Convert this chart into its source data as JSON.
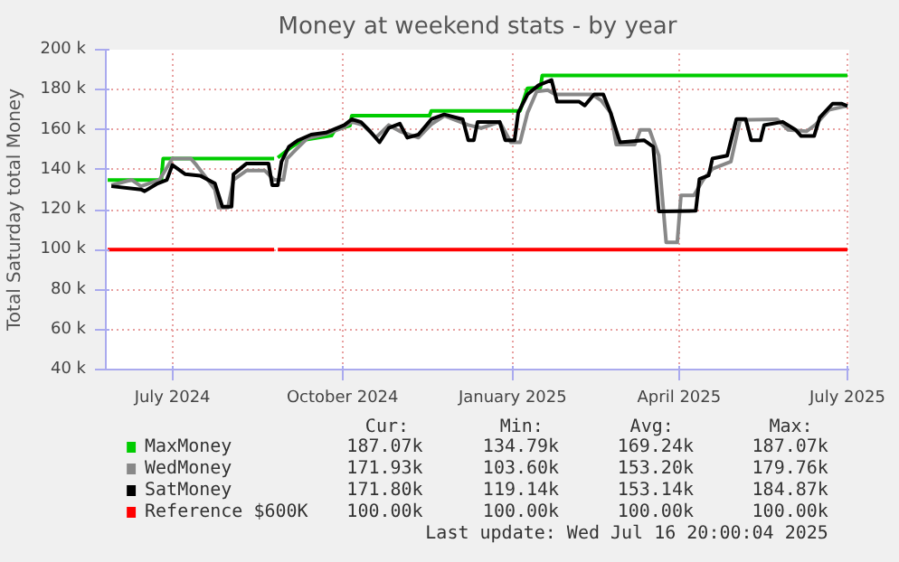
{
  "chart_data": {
    "type": "line",
    "title": "Money at weekend stats - by year",
    "ylabel": "Total Saturday total Money",
    "xlim": [
      "2024-06-10",
      "2025-07-17"
    ],
    "xticks": [
      {
        "value": "2024-07-16",
        "label": "July 2024"
      },
      {
        "value": "2024-10-16",
        "label": "October 2024"
      },
      {
        "value": "2025-01-16",
        "label": "January 2025"
      },
      {
        "value": "2025-04-16",
        "label": "April 2025"
      },
      {
        "value": "2025-07-16",
        "label": "July 2025"
      }
    ],
    "ylim": [
      40000,
      200000
    ],
    "yticks": [
      {
        "value": 40000,
        "label": "40 k"
      },
      {
        "value": 60000,
        "label": "60 k"
      },
      {
        "value": 80000,
        "label": "80 k"
      },
      {
        "value": 100000,
        "label": "100 k"
      },
      {
        "value": 120000,
        "label": "120 k"
      },
      {
        "value": 140000,
        "label": "140 k"
      },
      {
        "value": 160000,
        "label": "160 k"
      },
      {
        "value": 180000,
        "label": "180 k"
      },
      {
        "value": 200000,
        "label": "200 k"
      }
    ],
    "grid": true,
    "legend": "bottom",
    "series": [
      {
        "name": "MaxMoney",
        "color": "#00cc00",
        "x": [
          "2024-06-11",
          "2024-07-10",
          "2024-07-11",
          "2024-09-09",
          "2024-09-10",
          "2024-09-11",
          "2024-09-18",
          "2024-09-24",
          "2024-10-10",
          "2024-10-12",
          "2024-10-20",
          "2024-10-21",
          "2024-12-02",
          "2024-12-03",
          "2025-01-20",
          "2025-01-24",
          "2025-01-31",
          "2025-02-01",
          "2025-07-16"
        ],
        "values": [
          134790,
          134790,
          145500,
          145500,
          null,
          146000,
          151000,
          154700,
          157000,
          160000,
          162000,
          167000,
          167000,
          169400,
          169400,
          180700,
          181000,
          187070,
          187070
        ]
      },
      {
        "name": "WedMoney",
        "color": "#888888",
        "x": [
          "2024-06-13",
          "2024-06-24",
          "2024-06-29",
          "2024-07-09",
          "2024-07-16",
          "2024-07-26",
          "2024-07-29",
          "2024-08-03",
          "2024-08-08",
          "2024-08-10",
          "2024-08-15",
          "2024-08-18",
          "2024-08-25",
          "2024-09-04",
          "2024-09-09",
          "2024-09-14",
          "2024-09-16",
          "2024-09-21",
          "2024-09-27",
          "2024-10-07",
          "2024-10-16",
          "2024-10-21",
          "2024-10-27",
          "2024-11-03",
          "2024-11-10",
          "2024-11-16",
          "2024-11-26",
          "2024-12-03",
          "2024-12-10",
          "2024-12-23",
          "2024-12-30",
          "2025-01-09",
          "2025-01-15",
          "2025-01-20",
          "2025-01-24",
          "2025-01-29",
          "2025-02-04",
          "2025-02-08",
          "2025-02-28",
          "2025-03-05",
          "2025-03-10",
          "2025-03-13",
          "2025-03-23",
          "2025-03-26",
          "2025-03-31",
          "2025-04-05",
          "2025-04-09",
          "2025-04-15",
          "2025-04-17",
          "2025-04-24",
          "2025-04-29",
          "2025-05-04",
          "2025-05-14",
          "2025-05-19",
          "2025-06-08",
          "2025-06-14",
          "2025-06-24",
          "2025-06-29",
          "2025-07-06",
          "2025-07-16"
        ],
        "values": [
          132200,
          134900,
          131700,
          134900,
          145500,
          145500,
          142300,
          136300,
          130000,
          121000,
          121000,
          134900,
          139500,
          139500,
          134900,
          134900,
          145500,
          150200,
          155700,
          157800,
          160800,
          163900,
          162300,
          156000,
          162300,
          159200,
          156000,
          162700,
          166900,
          162300,
          160800,
          163900,
          153700,
          153700,
          168400,
          179100,
          179760,
          177600,
          177600,
          174500,
          168400,
          152500,
          152500,
          159900,
          159900,
          147000,
          103600,
          103600,
          127100,
          127100,
          134900,
          140400,
          144000,
          164900,
          165200,
          159900,
          159200,
          162700,
          169900,
          171930
        ]
      },
      {
        "name": "SatMoney",
        "color": "#000000",
        "x": [
          "2024-06-13",
          "2024-06-29",
          "2024-07-01",
          "2024-07-08",
          "2024-07-13",
          "2024-07-16",
          "2024-07-23",
          "2024-07-31",
          "2024-08-08",
          "2024-08-12",
          "2024-08-17",
          "2024-08-18",
          "2024-08-25",
          "2024-09-06",
          "2024-09-08",
          "2024-09-11",
          "2024-09-13",
          "2024-09-17",
          "2024-09-22",
          "2024-09-29",
          "2024-10-07",
          "2024-10-17",
          "2024-10-21",
          "2024-10-26",
          "2024-10-31",
          "2024-11-05",
          "2024-11-10",
          "2024-11-16",
          "2024-11-20",
          "2024-11-26",
          "2024-12-03",
          "2024-12-10",
          "2024-12-20",
          "2024-12-23",
          "2024-12-26",
          "2024-12-28",
          "2025-01-09",
          "2025-01-12",
          "2025-01-17",
          "2025-01-19",
          "2025-01-24",
          "2025-01-30",
          "2025-02-06",
          "2025-02-09",
          "2025-02-21",
          "2025-02-24",
          "2025-03-01",
          "2025-03-06",
          "2025-03-10",
          "2025-03-15",
          "2025-03-28",
          "2025-04-02",
          "2025-04-05",
          "2025-04-25",
          "2025-04-27",
          "2025-05-02",
          "2025-05-04",
          "2025-05-12",
          "2025-05-17",
          "2025-05-22",
          "2025-05-25",
          "2025-05-30",
          "2025-06-01",
          "2025-06-11",
          "2025-06-18",
          "2025-06-21",
          "2025-06-28",
          "2025-07-01",
          "2025-07-08",
          "2025-07-13",
          "2025-07-16"
        ],
        "values": [
          131700,
          130100,
          129200,
          133100,
          134900,
          142300,
          137700,
          137000,
          133100,
          121500,
          121500,
          137700,
          143000,
          143000,
          132200,
          132200,
          144000,
          151500,
          154700,
          157500,
          158500,
          162300,
          165200,
          163800,
          159100,
          153700,
          160800,
          163000,
          156000,
          157500,
          165200,
          167600,
          165200,
          154700,
          154700,
          163800,
          163800,
          154700,
          154700,
          168400,
          177600,
          182200,
          184870,
          174000,
          174000,
          172100,
          177600,
          177600,
          168400,
          153700,
          154700,
          151500,
          119140,
          119400,
          135300,
          137100,
          145500,
          147000,
          165300,
          165300,
          154700,
          154700,
          162300,
          163900,
          159900,
          156800,
          156800,
          166000,
          173000,
          173000,
          171800
        ]
      },
      {
        "name": "Reference $600K",
        "color": "#ff0000",
        "x": [
          "2024-06-11",
          "2024-09-09",
          "2024-09-10",
          "2024-09-11",
          "2025-07-16"
        ],
        "values": [
          100000,
          100000,
          null,
          100000,
          100000
        ]
      }
    ],
    "annotations": [
      "Cur:",
      "Min:",
      "Avg:",
      "Max:",
      "187.07k",
      "134.79k",
      "169.24k",
      "187.07k",
      "171.93k",
      "103.60k",
      "153.20k",
      "179.76k",
      "171.80k",
      "119.14k",
      "153.14k",
      "184.87k",
      "100.00k",
      "100.00k",
      "100.00k",
      "100.00k",
      "Last update: Wed Jul 16 20:00:04 2025"
    ]
  }
}
